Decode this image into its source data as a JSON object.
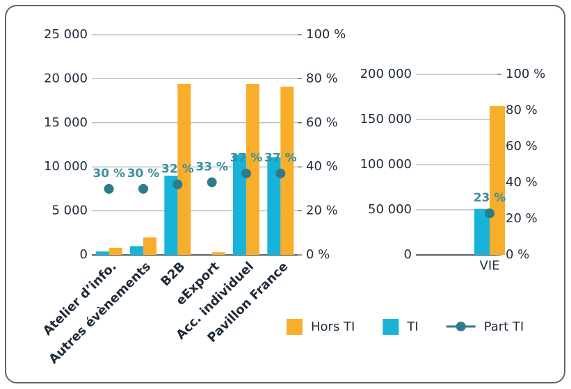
{
  "chart_data": [
    {
      "type": "bar",
      "categories": [
        "Atelier d’info.",
        "Autres évènements",
        "B2B",
        "eExport",
        "Acc. individuel",
        "Pavillon France"
      ],
      "series": [
        {
          "name": "Hors TI",
          "color": "#f8ae2b",
          "values": [
            800,
            2000,
            19400,
            300,
            19400,
            19100
          ]
        },
        {
          "name": "TI",
          "color": "#17b3d9",
          "values": [
            400,
            1000,
            9000,
            0,
            11400,
            11100
          ]
        },
        {
          "name": "Part TI",
          "type": "scatter",
          "axis": "y2",
          "color": "#2e7b8b",
          "values": [
            30,
            30,
            32,
            33,
            37,
            37
          ],
          "value_labels": [
            "30 %",
            "30 %",
            "32 %",
            "33 %",
            "37 %",
            "37 %"
          ]
        }
      ],
      "ylim": [
        0,
        25000
      ],
      "yticks": [
        0,
        {
          "value": 5000,
          "label": "5 000"
        },
        {
          "value": 10000,
          "label": "10 000"
        },
        {
          "value": 15000,
          "label": "15 000"
        },
        {
          "value": 20000,
          "label": "20 000"
        },
        {
          "value": 25000,
          "label": "25 000"
        }
      ],
      "y2lim": [
        0,
        100
      ],
      "y2ticks": [
        {
          "value": 0,
          "label": "0 %"
        },
        {
          "value": 20,
          "label": "20 %"
        },
        {
          "value": 40,
          "label": "40 %"
        },
        {
          "value": 60,
          "label": "60 %"
        },
        {
          "value": 80,
          "label": "80 %"
        },
        {
          "value": 100,
          "label": "100 %"
        }
      ],
      "grid": true
    },
    {
      "type": "bar",
      "categories": [
        "VIE"
      ],
      "series": [
        {
          "name": "Hors TI",
          "color": "#f8ae2b",
          "values": [
            165000
          ]
        },
        {
          "name": "TI",
          "color": "#17b3d9",
          "values": [
            51000
          ]
        },
        {
          "name": "Part TI",
          "type": "scatter",
          "axis": "y2",
          "color": "#2e7b8b",
          "values": [
            23
          ],
          "value_labels": [
            "23 %"
          ]
        }
      ],
      "ylim": [
        0,
        200000
      ],
      "yticks": [
        0,
        {
          "value": 50000,
          "label": "50 000"
        },
        {
          "value": 100000,
          "label": "100 000"
        },
        {
          "value": 150000,
          "label": "150 000"
        },
        {
          "value": 200000,
          "label": "200 000"
        }
      ],
      "y2lim": [
        0,
        100
      ],
      "y2ticks": [
        {
          "value": 0,
          "label": "0 %"
        },
        {
          "value": 20,
          "label": "20 %"
        },
        {
          "value": 40,
          "label": "40 %"
        },
        {
          "value": 60,
          "label": "60 %"
        },
        {
          "value": 80,
          "label": "80 %"
        },
        {
          "value": 100,
          "label": "100 %"
        }
      ],
      "grid": true
    }
  ]
}
